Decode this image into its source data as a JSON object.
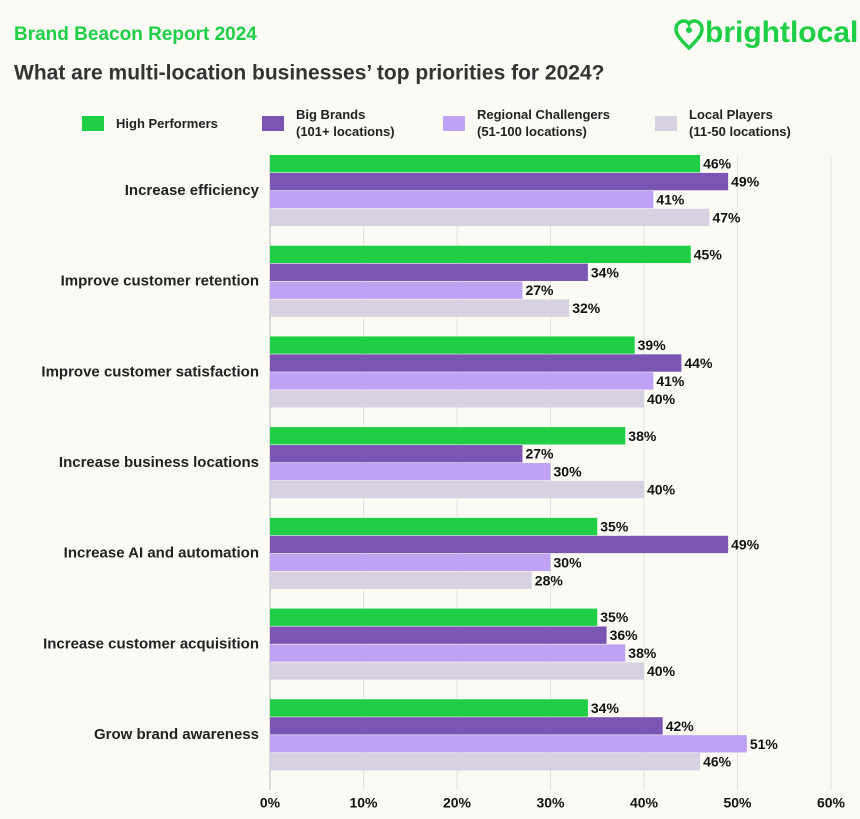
{
  "brand": {
    "report": "Brand Beacon Report 2024",
    "logo": "brightlocal"
  },
  "chart_data": {
    "type": "bar",
    "orientation": "horizontal",
    "title": "What are multi-location businesses’ top priorities for 2024?",
    "categories": [
      "Increase efficiency",
      "Improve customer retention",
      "Improve customer satisfaction",
      "Increase business locations",
      "Increase AI and automation",
      "Increase customer acquisition",
      "Grow brand awareness"
    ],
    "series": [
      {
        "name": "High Performers",
        "color": "#1ecf45",
        "values": [
          46,
          45,
          39,
          38,
          35,
          35,
          34
        ],
        "value_labels": [
          "46%",
          "45%",
          "39%",
          "38%",
          "35%",
          "35%",
          "34%"
        ]
      },
      {
        "name": "Big Brands\n(101+ locations)",
        "color": "#7a55b4",
        "values": [
          49,
          34,
          44,
          27,
          49,
          36,
          42
        ],
        "value_labels": [
          "49%",
          "34%",
          "44%",
          "27%",
          "49%",
          "36%",
          "42%"
        ]
      },
      {
        "name": "Regional Challengers\n(51-100 locations)",
        "color": "#c0a2f5",
        "values": [
          41,
          27,
          41,
          30,
          30,
          38,
          51
        ],
        "value_labels": [
          "41%",
          "27%",
          "41%",
          "30%",
          "30%",
          "38%",
          "51%"
        ]
      },
      {
        "name": "Local Players\n(11-50 locations)",
        "color": "#d7d1e1",
        "values": [
          47,
          32,
          40,
          40,
          28,
          40,
          46
        ],
        "value_labels": [
          "47%",
          "32%",
          "40%",
          "40%",
          "28%",
          "40%",
          "46%"
        ]
      }
    ],
    "xlim": [
      0,
      60
    ],
    "xticks": [
      {
        "value": 0,
        "label": "0%"
      },
      {
        "value": 10,
        "label": "10%"
      },
      {
        "value": 20,
        "label": "20%"
      },
      {
        "value": 30,
        "label": "30%"
      },
      {
        "value": 40,
        "label": "40%"
      },
      {
        "value": 50,
        "label": "50%"
      },
      {
        "value": 60,
        "label": "60%"
      }
    ],
    "grid": true
  }
}
